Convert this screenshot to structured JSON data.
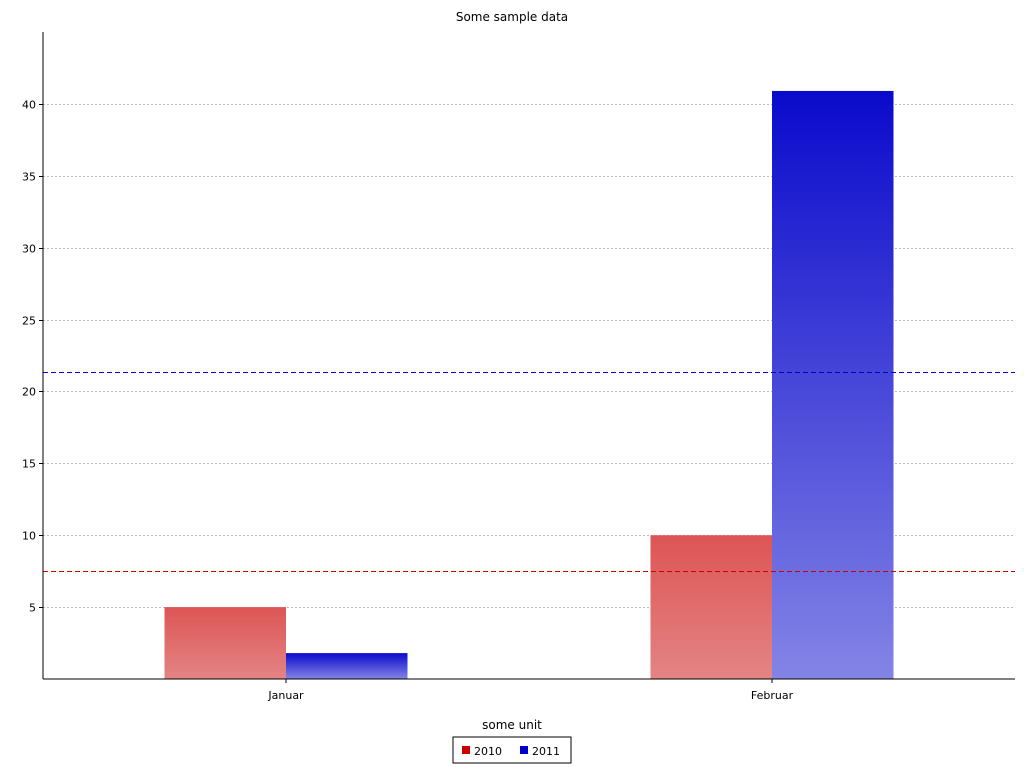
{
  "chart_data": {
    "type": "bar",
    "title": "Some sample data",
    "xlabel": "some unit",
    "ylabel": "",
    "categories": [
      "Januar",
      "Februar"
    ],
    "ylim": [
      0,
      45
    ],
    "yticks": [
      5,
      10,
      15,
      20,
      25,
      30,
      35,
      40
    ],
    "grid": "horizontal dotted",
    "legend_position": "bottom-center",
    "series": [
      {
        "name": "2010",
        "values": [
          5,
          10
        ],
        "color": "#cc0000",
        "average": 7.5
      },
      {
        "name": "2011",
        "values": [
          1.8,
          40.9
        ],
        "color": "#0000cc",
        "average": 21.35
      }
    ]
  }
}
